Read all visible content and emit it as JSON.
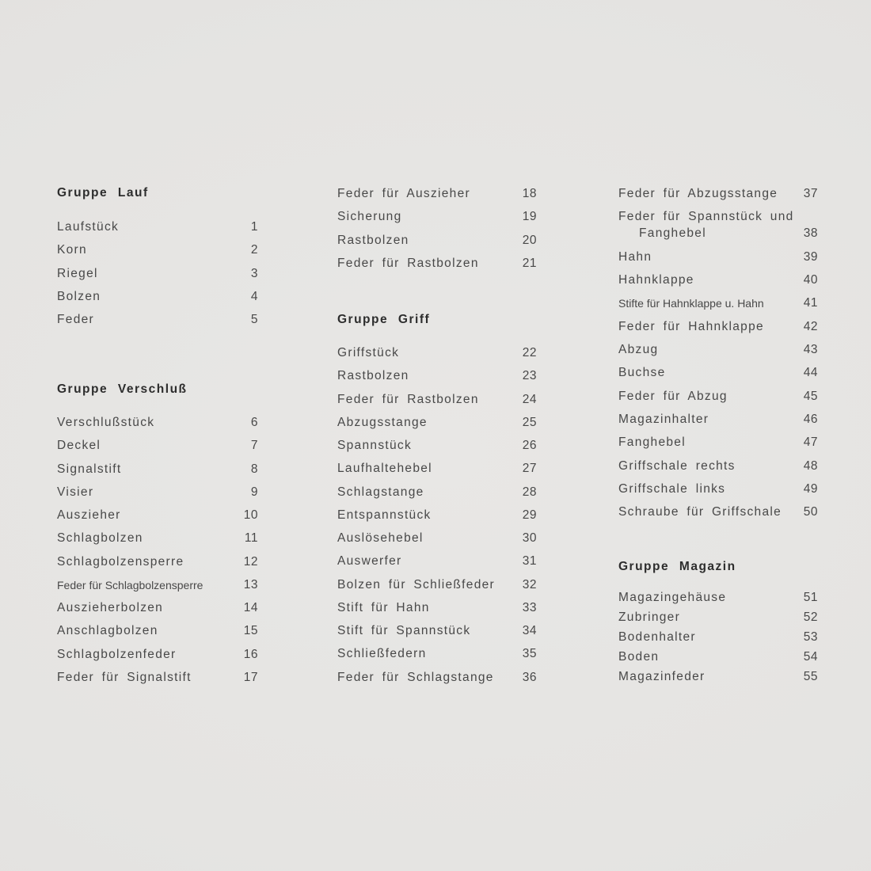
{
  "document": {
    "language": "de",
    "background_color": "#e5e4e2",
    "text_color": "#484848",
    "header_color": "#2d2d2d",
    "columns": [
      {
        "blocks": [
          {
            "header": "Gruppe Lauf",
            "items": [
              {
                "label": "Laufstück",
                "num": "1"
              },
              {
                "label": "Korn",
                "num": "2"
              },
              {
                "label": "Riegel",
                "num": "3"
              },
              {
                "label": "Bolzen",
                "num": "4"
              },
              {
                "label": "Feder",
                "num": "5"
              }
            ]
          },
          {
            "header": "Gruppe Verschluß",
            "items": [
              {
                "label": "Verschlußstück",
                "num": "6"
              },
              {
                "label": "Deckel",
                "num": "7"
              },
              {
                "label": "Signalstift",
                "num": "8"
              },
              {
                "label": "Visier",
                "num": "9"
              },
              {
                "label": "Auszieher",
                "num": "10"
              },
              {
                "label": "Schlagbolzen",
                "num": "11"
              },
              {
                "label": "Schlagbolzensperre",
                "num": "12"
              },
              {
                "label": "Feder für Schlagbolzensperre",
                "num": "13"
              },
              {
                "label": "Auszieherbolzen",
                "num": "14"
              },
              {
                "label": "Anschlagbolzen",
                "num": "15"
              },
              {
                "label": "Schlagbolzenfeder",
                "num": "16"
              },
              {
                "label": "Feder für Signalstift",
                "num": "17"
              }
            ]
          }
        ]
      },
      {
        "blocks": [
          {
            "items": [
              {
                "label": "Feder für Auszieher",
                "num": "18"
              },
              {
                "label": "Sicherung",
                "num": "19"
              },
              {
                "label": "Rastbolzen",
                "num": "20"
              },
              {
                "label": "Feder für Rastbolzen",
                "num": "21"
              }
            ]
          },
          {
            "header": "Gruppe Griff",
            "items": [
              {
                "label": "Griffstück",
                "num": "22"
              },
              {
                "label": "Rastbolzen",
                "num": "23"
              },
              {
                "label": "Feder für Rastbolzen",
                "num": "24"
              },
              {
                "label": "Abzugsstange",
                "num": "25"
              },
              {
                "label": "Spannstück",
                "num": "26"
              },
              {
                "label": "Laufhaltehebel",
                "num": "27"
              },
              {
                "label": "Schlagstange",
                "num": "28"
              },
              {
                "label": "Entspannstück",
                "num": "29"
              },
              {
                "label": "Auslösehebel",
                "num": "30"
              },
              {
                "label": "Auswerfer",
                "num": "31"
              },
              {
                "label": "Bolzen für Schließfeder",
                "num": "32"
              },
              {
                "label": "Stift für Hahn",
                "num": "33"
              },
              {
                "label": "Stift für Spannstück",
                "num": "34"
              },
              {
                "label": "Schließfedern",
                "num": "35"
              },
              {
                "label": "Feder für Schlagstange",
                "num": "36"
              }
            ]
          }
        ]
      },
      {
        "blocks": [
          {
            "items": [
              {
                "label": "Feder für Abzugsstange",
                "num": "37"
              },
              {
                "label": "Feder für Spannstück und",
                "label2": "Fanghebel",
                "num": "38"
              },
              {
                "label": "Hahn",
                "num": "39"
              },
              {
                "label": "Hahnklappe",
                "num": "40"
              },
              {
                "label": "Stifte für Hahnklappe u. Hahn",
                "num": "41"
              },
              {
                "label": "Feder für Hahnklappe",
                "num": "42"
              },
              {
                "label": "Abzug",
                "num": "43"
              },
              {
                "label": "Buchse",
                "num": "44"
              },
              {
                "label": "Feder für Abzug",
                "num": "45"
              },
              {
                "label": "Magazinhalter",
                "num": "46"
              },
              {
                "label": "Fanghebel",
                "num": "47"
              },
              {
                "label": "Griffschale rechts",
                "num": "48"
              },
              {
                "label": "Griffschale links",
                "num": "49"
              },
              {
                "label": "Schraube für Griffschale",
                "num": "50"
              }
            ]
          },
          {
            "header": "Gruppe Magazin",
            "items": [
              {
                "label": "Magazingehäuse",
                "num": "51"
              },
              {
                "label": "Zubringer",
                "num": "52"
              },
              {
                "label": "Bodenhalter",
                "num": "53"
              },
              {
                "label": "Boden",
                "num": "54"
              },
              {
                "label": "Magazinfeder",
                "num": "55"
              }
            ]
          }
        ]
      }
    ]
  }
}
